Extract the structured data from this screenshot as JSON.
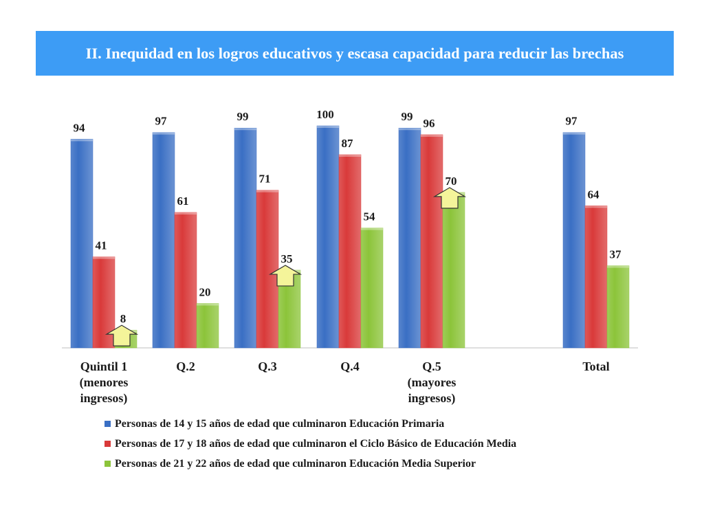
{
  "title": "II. Inequidad en los logros educativos y escasa capacidad para reducir las brechas",
  "colors": {
    "banner": "#3d9cf5",
    "primaria": "#3a6fc4",
    "basico": "#d93a3a",
    "superior": "#8cc43a",
    "arrow": "#f4f49a"
  },
  "chart_data": {
    "type": "bar",
    "categories": [
      [
        "Quintil 1",
        "(menores",
        "ingresos)"
      ],
      [
        "Q.2"
      ],
      [
        "Q.3"
      ],
      [
        "Q.4"
      ],
      [
        "Q.5",
        "(mayores",
        "ingresos)"
      ],
      [
        "Total"
      ]
    ],
    "series": [
      {
        "name": "Personas de 14 y 15 años de edad que culminaron Educación Primaria",
        "values": [
          94,
          97,
          99,
          100,
          99,
          97
        ]
      },
      {
        "name": "Personas de 17 y 18 años de edad que culminaron el Ciclo Básico de Educación Media",
        "values": [
          41,
          61,
          71,
          87,
          96,
          64
        ]
      },
      {
        "name": "Personas de 21 y 22 años de edad que culminaron Educación Media Superior",
        "values": [
          8,
          20,
          35,
          54,
          70,
          37
        ]
      }
    ],
    "ylim": [
      0,
      100
    ],
    "grid": false,
    "legend_position": "bottom",
    "annotations": {
      "arrows_on_series": 2,
      "arrows_at_categories": [
        0,
        2,
        4
      ]
    }
  }
}
